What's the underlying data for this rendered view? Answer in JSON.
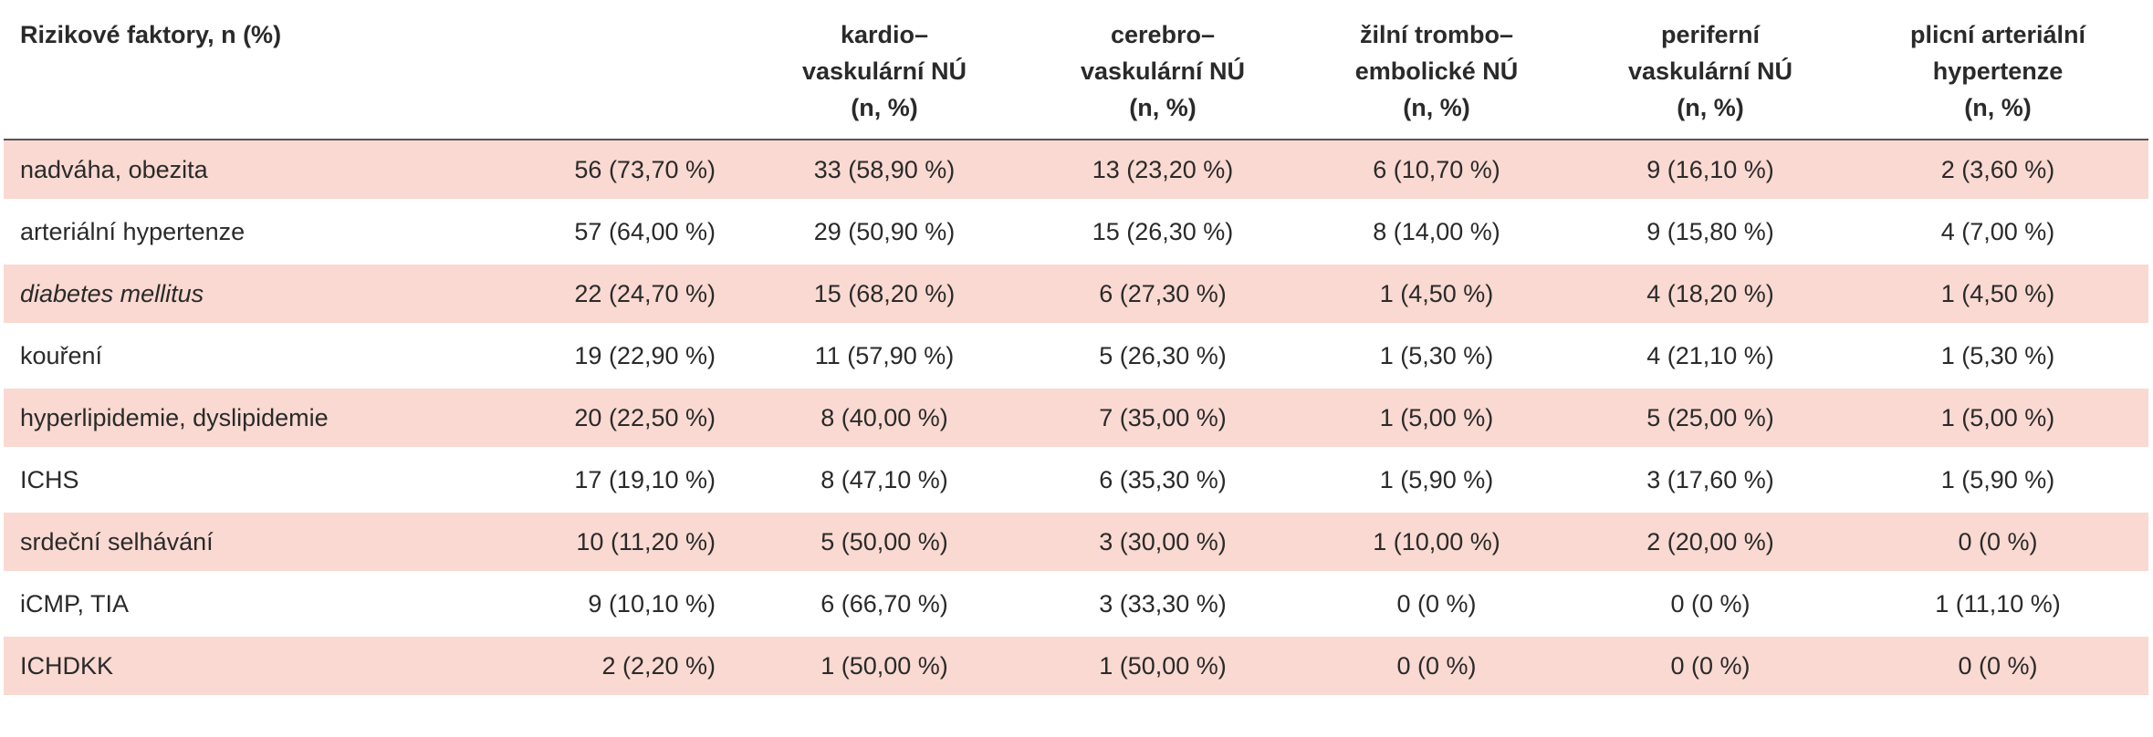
{
  "table": {
    "headers": [
      "Rizikové faktory, n (%)",
      "kardio–\nvaskulární NÚ\n(n, %)",
      "cerebro–\nvaskulární NÚ\n(n, %)",
      "žilní trombo–\nembolické NÚ\n(n, %)",
      "periferní\nvaskulární NÚ\n(n, %)",
      "plicní arteriální\nhypertenze\n(n, %)"
    ],
    "rows": [
      [
        "nadváha, obezita",
        "56 (73,70 %)",
        "33 (58,90 %)",
        "13 (23,20 %)",
        "6 (10,70 %)",
        "9 (16,10 %)",
        "2 (3,60 %)"
      ],
      [
        "arteriální hypertenze",
        "57 (64,00 %)",
        "29 (50,90 %)",
        "15 (26,30 %)",
        "8 (14,00 %)",
        "9 (15,80 %)",
        "4 (7,00 %)"
      ],
      [
        "diabetes mellitus",
        "22 (24,70 %)",
        "15 (68,20 %)",
        "6 (27,30 %)",
        "1 (4,50 %)",
        "4 (18,20 %)",
        "1 (4,50 %)"
      ],
      [
        "kouření",
        "19 (22,90 %)",
        "11 (57,90 %)",
        "5 (26,30 %)",
        "1 (5,30 %)",
        "4 (21,10 %)",
        "1 (5,30 %)"
      ],
      [
        "hyperlipidemie, dyslipidemie",
        "20 (22,50 %)",
        "8 (40,00 %)",
        "7 (35,00 %)",
        "1 (5,00 %)",
        "5 (25,00 %)",
        "1 (5,00 %)"
      ],
      [
        "ICHS",
        "17 (19,10 %)",
        "8 (47,10 %)",
        "6 (35,30 %)",
        "1 (5,90 %)",
        "3 (17,60 %)",
        "1 (5,90 %)"
      ],
      [
        "srdeční selhávání",
        "10 (11,20 %)",
        "5 (50,00 %)",
        "3 (30,00 %)",
        "1 (10,00 %)",
        "2 (20,00 %)",
        "0 (0 %)"
      ],
      [
        "iCMP, TIA",
        "9 (10,10 %)",
        "6 (66,70 %)",
        "3 (33,30 %)",
        "0 (0 %)",
        "0 (0 %)",
        "1 (11,10 %)"
      ],
      [
        "ICHDKK",
        "2 (2,20 %)",
        "1 (50,00 %)",
        "1 (50,00 %)",
        "0 (0 %)",
        "0 (0 %)",
        "0 (0 %)"
      ]
    ]
  }
}
